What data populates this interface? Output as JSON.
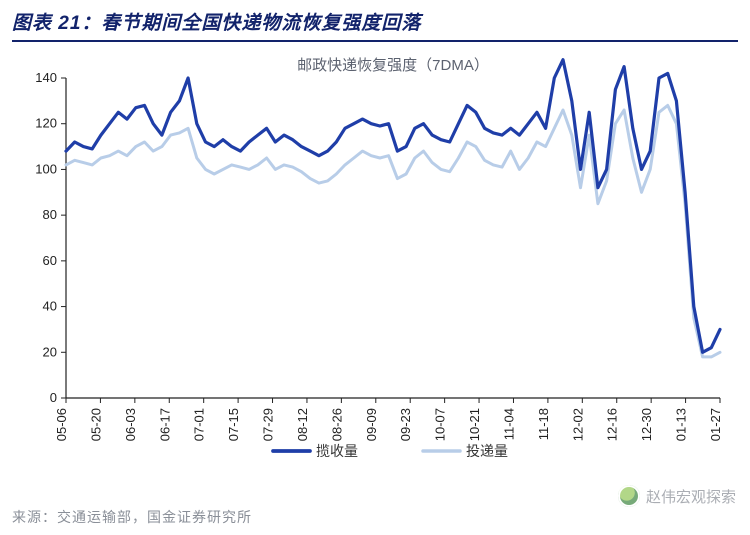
{
  "title": "图表 21：春节期间全国快递物流恢复强度回落",
  "chart": {
    "type": "line",
    "subtitle": "邮政快递恢复强度（7DMA）",
    "subtitle_fontsize": 15,
    "subtitle_color": "#5c6270",
    "background_color": "#ffffff",
    "axis_color": "#222222",
    "axis_fontsize": 13,
    "tick_color": "#222222",
    "ylim": [
      0,
      140
    ],
    "ytick_step": 20,
    "xlabels": [
      "05-06",
      "05-20",
      "06-03",
      "06-17",
      "07-01",
      "07-15",
      "07-29",
      "08-12",
      "08-26",
      "09-09",
      "09-23",
      "10-07",
      "10-21",
      "11-04",
      "11-18",
      "12-02",
      "12-16",
      "12-30",
      "01-13",
      "01-27"
    ],
    "series": [
      {
        "name": "揽收量",
        "color": "#1f3ea8",
        "line_width": 3.2,
        "data": [
          108,
          112,
          110,
          109,
          115,
          120,
          125,
          122,
          127,
          128,
          120,
          115,
          125,
          130,
          140,
          120,
          112,
          110,
          113,
          110,
          108,
          112,
          115,
          118,
          112,
          115,
          113,
          110,
          108,
          106,
          108,
          112,
          118,
          120,
          122,
          120,
          119,
          120,
          108,
          110,
          118,
          120,
          115,
          113,
          112,
          120,
          128,
          125,
          118,
          116,
          115,
          118,
          115,
          120,
          125,
          118,
          140,
          148,
          130,
          100,
          125,
          92,
          100,
          135,
          145,
          118,
          100,
          108,
          140,
          142,
          130,
          90,
          40,
          20,
          22,
          30
        ]
      },
      {
        "name": "投递量",
        "color": "#b8cde8",
        "line_width": 3.0,
        "data": [
          102,
          104,
          103,
          102,
          105,
          106,
          108,
          106,
          110,
          112,
          108,
          110,
          115,
          116,
          118,
          105,
          100,
          98,
          100,
          102,
          101,
          100,
          102,
          105,
          100,
          102,
          101,
          99,
          96,
          94,
          95,
          98,
          102,
          105,
          108,
          106,
          105,
          106,
          96,
          98,
          105,
          108,
          103,
          100,
          99,
          105,
          112,
          110,
          104,
          102,
          101,
          108,
          100,
          105,
          112,
          110,
          118,
          126,
          115,
          92,
          115,
          85,
          95,
          120,
          126,
          105,
          90,
          100,
          125,
          128,
          120,
          85,
          35,
          18,
          18,
          20
        ]
      }
    ],
    "legend": {
      "position": "bottom",
      "fontsize": 14
    }
  },
  "source_label": "来源：交通运输部，国金证券研究所",
  "watermark": "赵伟宏观探索"
}
